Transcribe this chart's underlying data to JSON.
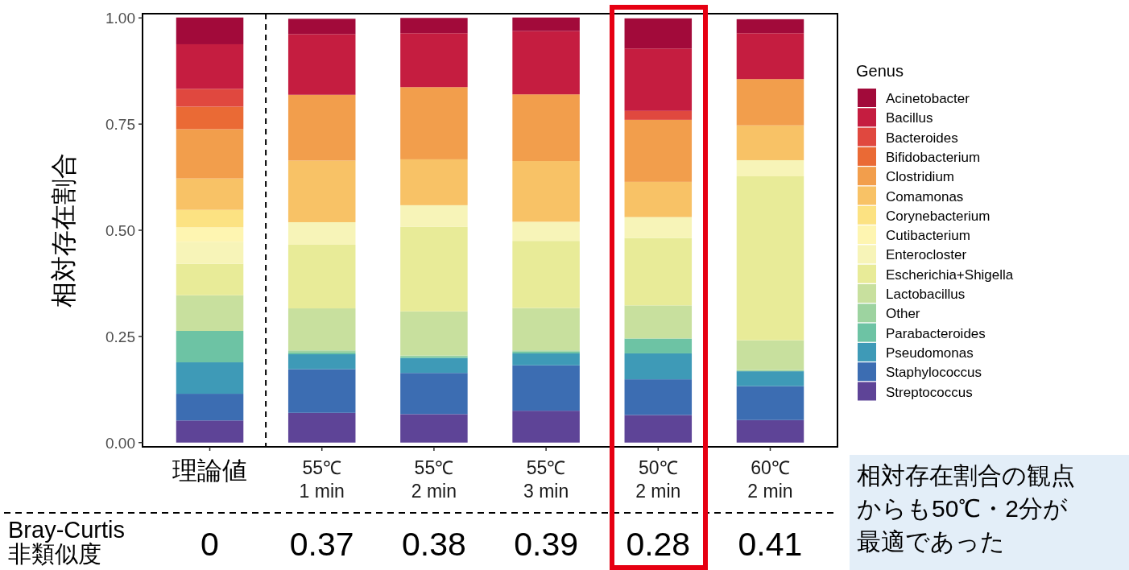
{
  "chart_data": {
    "type": "bar",
    "stacked": true,
    "ylabel": "相対存在割合",
    "legend_title": "Genus",
    "legend": "right",
    "categories": [
      "理論値",
      "55℃\n1 min",
      "55℃\n2 min",
      "55℃\n3 min",
      "50℃\n2 min",
      "60℃\n2 min"
    ],
    "ylim": [
      -0.01,
      1.01
    ],
    "yticks": [
      {
        "value": 0,
        "label": "0.00"
      },
      {
        "value": 0.25,
        "label": "0.25"
      },
      {
        "value": 0.5,
        "label": "0.50"
      },
      {
        "value": 0.75,
        "label": "0.75"
      },
      {
        "value": 1,
        "label": "1.00"
      }
    ],
    "series": [
      {
        "name": "Streptococcus",
        "color": "#5e4497",
        "values": [
          0.052,
          0.07,
          0.067,
          0.075,
          0.065,
          0.053
        ]
      },
      {
        "name": "Staphylococcus",
        "color": "#3c6db2",
        "values": [
          0.063,
          0.103,
          0.097,
          0.107,
          0.084,
          0.08
        ]
      },
      {
        "name": "Pseudomonas",
        "color": "#3e9ab7",
        "values": [
          0.074,
          0.035,
          0.035,
          0.028,
          0.061,
          0.035
        ]
      },
      {
        "name": "Parabacteroides",
        "color": "#6dc3a4",
        "values": [
          0.074,
          0.004,
          0.003,
          0.004,
          0.035,
          0
        ]
      },
      {
        "name": "Other",
        "color": "#9dd3a0",
        "values": [
          0,
          0.005,
          0.003,
          0.003,
          0,
          0.003
        ]
      },
      {
        "name": "Lactobacillus",
        "color": "#c8e09e",
        "values": [
          0.084,
          0.099,
          0.104,
          0.1,
          0.078,
          0.07
        ]
      },
      {
        "name": "Escherichia+Shigella",
        "color": "#e8eb98",
        "values": [
          0.074,
          0.15,
          0.199,
          0.158,
          0.159,
          0.386
        ]
      },
      {
        "name": "Enterocloster",
        "color": "#f7f4b8",
        "values": [
          0.052,
          0.053,
          0.051,
          0.045,
          0.049,
          0.038
        ]
      },
      {
        "name": "Cutibacterium",
        "color": "#fef5b1",
        "values": [
          0.034,
          0,
          0,
          0,
          0,
          0
        ]
      },
      {
        "name": "Corynebacterium",
        "color": "#fce282",
        "values": [
          0.041,
          0,
          0,
          0,
          0,
          0
        ]
      },
      {
        "name": "Comamonas",
        "color": "#f8c266",
        "values": [
          0.074,
          0.145,
          0.108,
          0.143,
          0.083,
          0.082
        ]
      },
      {
        "name": "Clostridium",
        "color": "#f29e4c",
        "values": [
          0.116,
          0.155,
          0.17,
          0.157,
          0.146,
          0.109
        ]
      },
      {
        "name": "Bifidobacterium",
        "color": "#ea6a35",
        "values": [
          0.053,
          0,
          0,
          0,
          0,
          0
        ]
      },
      {
        "name": "Bacteroides",
        "color": "#e0483f",
        "values": [
          0.042,
          0,
          0,
          0,
          0.021,
          0
        ]
      },
      {
        "name": "Bacillus",
        "color": "#c51d40",
        "values": [
          0.105,
          0.143,
          0.127,
          0.149,
          0.147,
          0.108
        ]
      },
      {
        "name": "Acinetobacter",
        "color": "#a20a3a",
        "values": [
          0.063,
          0.036,
          0.036,
          0.032,
          0.071,
          0.033
        ]
      }
    ],
    "annotations": [
      "Bray-Curtis\n非類似度",
      "0",
      "0.37",
      "0.38",
      "0.39",
      "0.28",
      "0.41",
      "相対存在割合の観点からも50℃・2分が最適であった"
    ]
  }
}
